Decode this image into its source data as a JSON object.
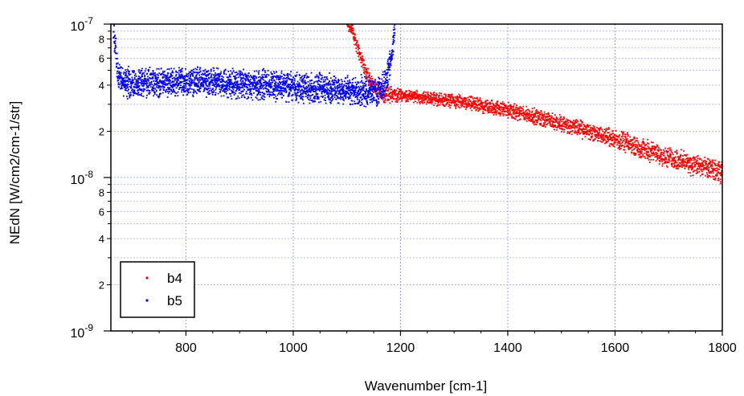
{
  "chart_data": {
    "type": "scatter",
    "title": "",
    "xlabel": "Wavenumber [cm-1]",
    "ylabel": "NEdN [W/cm2/cm-1/str]",
    "xlim": [
      660,
      1800
    ],
    "ylim": [
      1e-09,
      1e-07
    ],
    "y_scale": "log",
    "grid": true,
    "legend_position": "bottom-left",
    "x_ticks": [
      800,
      1000,
      1200,
      1400,
      1600,
      1800
    ],
    "x_tick_labels": [
      "800",
      "1000",
      "1200",
      "1400",
      "1600",
      "1800"
    ],
    "y_major_ticks": [
      {
        "value": 1e-07,
        "base": "10",
        "exp": "-7"
      },
      {
        "value": 1e-08,
        "base": "10",
        "exp": "-8"
      },
      {
        "value": 1e-09,
        "base": "10",
        "exp": "-9"
      }
    ],
    "y_minor_ticks": [
      {
        "value": 8e-08,
        "label": "8"
      },
      {
        "value": 6e-08,
        "label": "6"
      },
      {
        "value": 4e-08,
        "label": "4"
      },
      {
        "value": 2e-08,
        "label": "2"
      },
      {
        "value": 8e-09,
        "label": "8"
      },
      {
        "value": 6e-09,
        "label": "6"
      },
      {
        "value": 4e-09,
        "label": "4"
      },
      {
        "value": 2e-09,
        "label": "2"
      }
    ],
    "series": [
      {
        "name": "b4",
        "color": "#ff0000",
        "points": [
          [
            1100,
            1e-07
          ],
          [
            1105,
            9.8e-08
          ],
          [
            1110,
            9e-08
          ],
          [
            1115,
            8e-08
          ],
          [
            1120,
            7e-08
          ],
          [
            1125,
            6.2e-08
          ],
          [
            1130,
            5.6e-08
          ],
          [
            1135,
            5e-08
          ],
          [
            1140,
            4.5e-08
          ],
          [
            1145,
            4.2e-08
          ],
          [
            1150,
            3.9e-08
          ],
          [
            1160,
            3.6e-08
          ],
          [
            1170,
            3.5e-08
          ],
          [
            1200,
            3.45e-08
          ],
          [
            1250,
            3.3e-08
          ],
          [
            1300,
            3.15e-08
          ],
          [
            1350,
            2.95e-08
          ],
          [
            1400,
            2.75e-08
          ],
          [
            1450,
            2.5e-08
          ],
          [
            1500,
            2.25e-08
          ],
          [
            1550,
            2e-08
          ],
          [
            1600,
            1.78e-08
          ],
          [
            1650,
            1.55e-08
          ],
          [
            1700,
            1.35e-08
          ],
          [
            1750,
            1.2e-08
          ],
          [
            1800,
            1.07e-08
          ]
        ]
      },
      {
        "name": "b5",
        "color": "#0000ff",
        "points": [
          [
            665,
            1e-07
          ],
          [
            668,
            7.5e-08
          ],
          [
            672,
            5e-08
          ],
          [
            680,
            4.2e-08
          ],
          [
            700,
            4.1e-08
          ],
          [
            750,
            4.15e-08
          ],
          [
            800,
            4.2e-08
          ],
          [
            850,
            4.2e-08
          ],
          [
            900,
            4.1e-08
          ],
          [
            950,
            4e-08
          ],
          [
            1000,
            3.9e-08
          ],
          [
            1050,
            3.8e-08
          ],
          [
            1100,
            3.7e-08
          ],
          [
            1150,
            3.6e-08
          ],
          [
            1160,
            3.7e-08
          ],
          [
            1170,
            4e-08
          ],
          [
            1175,
            4.6e-08
          ],
          [
            1180,
            5.5e-08
          ],
          [
            1185,
            7e-08
          ],
          [
            1190,
            1e-07
          ]
        ]
      }
    ]
  }
}
